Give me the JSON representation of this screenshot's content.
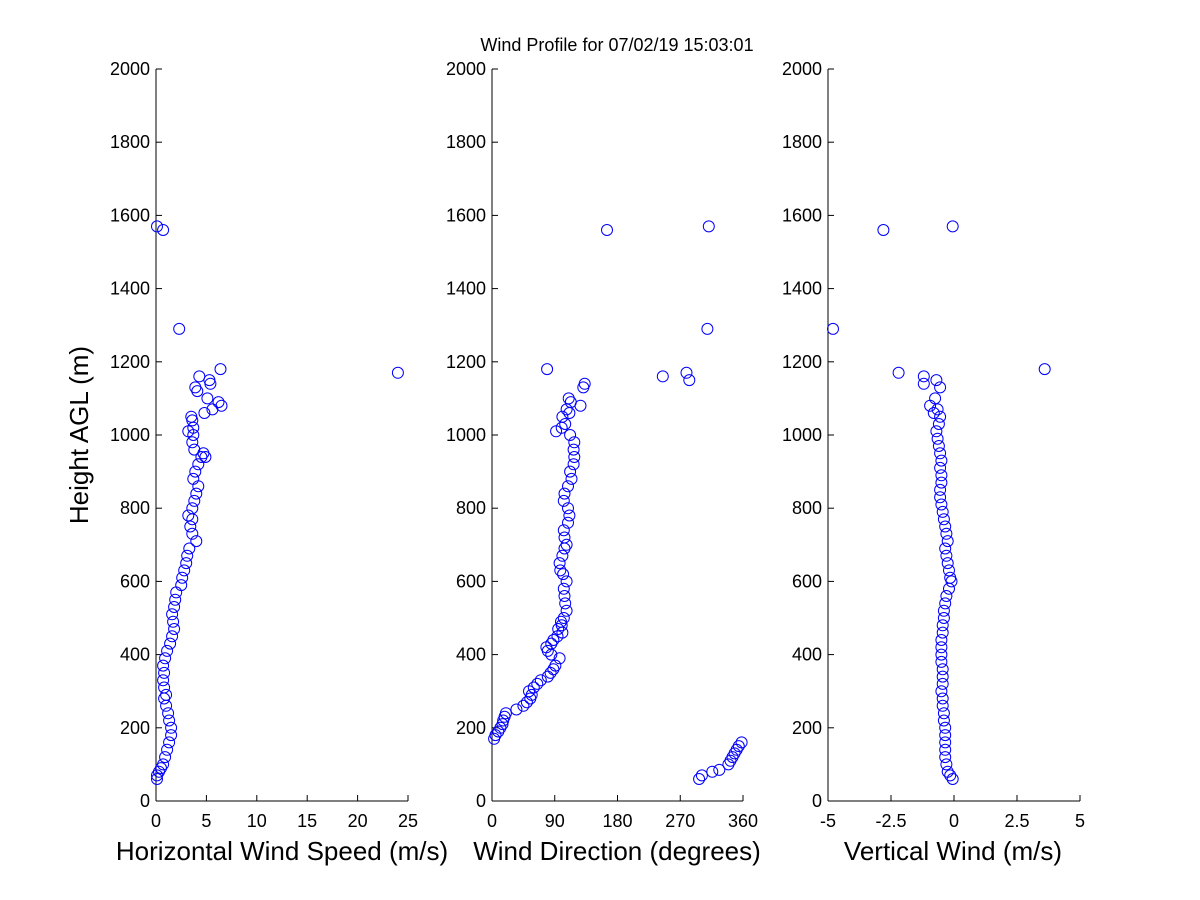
{
  "figure": {
    "title": "Wind Profile for  07/02/19 15:03:01",
    "marker_color": "#0000ff",
    "axis_color": "#000000"
  },
  "chart_data": [
    {
      "type": "scatter",
      "id": "speed",
      "xlabel": "Horizontal Wind Speed (m/s)",
      "ylabel": "Height AGL (m)",
      "xlim": [
        0,
        25
      ],
      "ylim": [
        0,
        2000
      ],
      "xticks": [
        0,
        5,
        10,
        15,
        20,
        25
      ],
      "xtick_labels": [
        "0",
        "5",
        "10",
        "15",
        "20",
        "25"
      ],
      "yticks": [
        0,
        200,
        400,
        600,
        800,
        1000,
        1200,
        1400,
        1600,
        1800,
        2000
      ],
      "ytick_labels": [
        "0",
        "200",
        "400",
        "600",
        "800",
        "1000",
        "1200",
        "1400",
        "1600",
        "1800",
        "2000"
      ],
      "points": [
        [
          0.1,
          60
        ],
        [
          0.1,
          70
        ],
        [
          0.3,
          80
        ],
        [
          0.5,
          90
        ],
        [
          0.7,
          100
        ],
        [
          0.9,
          120
        ],
        [
          1.1,
          140
        ],
        [
          1.3,
          160
        ],
        [
          1.5,
          180
        ],
        [
          1.5,
          200
        ],
        [
          1.3,
          220
        ],
        [
          1.2,
          240
        ],
        [
          1.0,
          260
        ],
        [
          0.8,
          280
        ],
        [
          1.0,
          290
        ],
        [
          0.8,
          310
        ],
        [
          0.7,
          330
        ],
        [
          0.8,
          350
        ],
        [
          0.7,
          370
        ],
        [
          0.9,
          390
        ],
        [
          1.1,
          410
        ],
        [
          1.4,
          430
        ],
        [
          1.6,
          450
        ],
        [
          1.8,
          470
        ],
        [
          1.7,
          490
        ],
        [
          1.6,
          510
        ],
        [
          1.8,
          530
        ],
        [
          1.9,
          550
        ],
        [
          2.0,
          570
        ],
        [
          2.5,
          590
        ],
        [
          2.6,
          610
        ],
        [
          2.8,
          630
        ],
        [
          3.0,
          650
        ],
        [
          3.1,
          670
        ],
        [
          3.3,
          690
        ],
        [
          4.0,
          710
        ],
        [
          3.6,
          730
        ],
        [
          3.4,
          750
        ],
        [
          3.6,
          770
        ],
        [
          3.2,
          780
        ],
        [
          3.6,
          800
        ],
        [
          3.8,
          820
        ],
        [
          4.0,
          840
        ],
        [
          4.2,
          860
        ],
        [
          3.7,
          880
        ],
        [
          3.9,
          900
        ],
        [
          4.2,
          920
        ],
        [
          4.5,
          940
        ],
        [
          4.7,
          950
        ],
        [
          4.9,
          940
        ],
        [
          3.8,
          960
        ],
        [
          3.6,
          980
        ],
        [
          3.7,
          1000
        ],
        [
          3.2,
          1010
        ],
        [
          3.7,
          1020
        ],
        [
          3.6,
          1040
        ],
        [
          3.5,
          1050
        ],
        [
          4.8,
          1060
        ],
        [
          5.6,
          1070
        ],
        [
          6.5,
          1080
        ],
        [
          6.2,
          1090
        ],
        [
          5.1,
          1100
        ],
        [
          4.1,
          1120
        ],
        [
          3.9,
          1130
        ],
        [
          5.4,
          1140
        ],
        [
          5.3,
          1150
        ],
        [
          4.3,
          1160
        ],
        [
          6.4,
          1180
        ],
        [
          24.0,
          1170
        ],
        [
          2.3,
          1290
        ],
        [
          0.7,
          1560
        ],
        [
          0.1,
          1570
        ]
      ]
    },
    {
      "type": "scatter",
      "id": "direction",
      "xlabel": "Wind Direction (degrees)",
      "ylabel": "",
      "xlim": [
        0,
        360
      ],
      "ylim": [
        0,
        2000
      ],
      "xticks": [
        0,
        90,
        180,
        270,
        360
      ],
      "xtick_labels": [
        "0",
        "90",
        "180",
        "270",
        "360"
      ],
      "yticks": [
        0,
        200,
        400,
        600,
        800,
        1000,
        1200,
        1400,
        1600,
        1800,
        2000
      ],
      "ytick_labels": [
        "0",
        "200",
        "400",
        "600",
        "800",
        "1000",
        "1200",
        "1400",
        "1600",
        "1800",
        "2000"
      ],
      "points": [
        [
          297,
          60
        ],
        [
          301,
          70
        ],
        [
          316,
          80
        ],
        [
          326,
          85
        ],
        [
          339,
          100
        ],
        [
          342,
          110
        ],
        [
          345,
          120
        ],
        [
          348,
          130
        ],
        [
          351,
          140
        ],
        [
          354,
          150
        ],
        [
          358,
          160
        ],
        [
          3,
          170
        ],
        [
          5,
          180
        ],
        [
          9,
          190
        ],
        [
          12,
          200
        ],
        [
          15,
          210
        ],
        [
          16,
          220
        ],
        [
          18,
          230
        ],
        [
          20,
          240
        ],
        [
          35,
          250
        ],
        [
          45,
          260
        ],
        [
          50,
          270
        ],
        [
          55,
          280
        ],
        [
          57,
          290
        ],
        [
          53,
          300
        ],
        [
          60,
          310
        ],
        [
          65,
          320
        ],
        [
          70,
          330
        ],
        [
          80,
          340
        ],
        [
          84,
          350
        ],
        [
          88,
          360
        ],
        [
          91,
          370
        ],
        [
          97,
          390
        ],
        [
          85,
          400
        ],
        [
          80,
          410
        ],
        [
          78,
          420
        ],
        [
          85,
          430
        ],
        [
          88,
          440
        ],
        [
          94,
          450
        ],
        [
          101,
          460
        ],
        [
          95,
          470
        ],
        [
          100,
          480
        ],
        [
          99,
          490
        ],
        [
          103,
          500
        ],
        [
          107,
          520
        ],
        [
          105,
          540
        ],
        [
          104,
          560
        ],
        [
          103,
          580
        ],
        [
          107,
          600
        ],
        [
          102,
          620
        ],
        [
          98,
          630
        ],
        [
          97,
          650
        ],
        [
          101,
          670
        ],
        [
          104,
          690
        ],
        [
          107,
          700
        ],
        [
          104,
          720
        ],
        [
          103,
          740
        ],
        [
          109,
          760
        ],
        [
          111,
          780
        ],
        [
          109,
          800
        ],
        [
          103,
          820
        ],
        [
          104,
          840
        ],
        [
          109,
          860
        ],
        [
          114,
          880
        ],
        [
          112,
          900
        ],
        [
          117,
          920
        ],
        [
          118,
          940
        ],
        [
          117,
          960
        ],
        [
          118,
          980
        ],
        [
          112,
          1000
        ],
        [
          92,
          1010
        ],
        [
          100,
          1020
        ],
        [
          105,
          1030
        ],
        [
          101,
          1050
        ],
        [
          111,
          1060
        ],
        [
          107,
          1070
        ],
        [
          127,
          1080
        ],
        [
          113,
          1090
        ],
        [
          110,
          1100
        ],
        [
          131,
          1130
        ],
        [
          133,
          1140
        ],
        [
          79,
          1180
        ],
        [
          245,
          1160
        ],
        [
          279,
          1170
        ],
        [
          283,
          1150
        ],
        [
          309,
          1290
        ],
        [
          165,
          1560
        ],
        [
          311,
          1570
        ]
      ]
    },
    {
      "type": "scatter",
      "id": "vertical",
      "xlabel": "Vertical Wind (m/s)",
      "ylabel": "",
      "xlim": [
        -5,
        5
      ],
      "ylim": [
        0,
        2000
      ],
      "xticks": [
        -5,
        -2.5,
        0,
        2.5,
        5
      ],
      "xtick_labels": [
        "-5",
        "-2.5",
        "0",
        "2.5",
        "5"
      ],
      "yticks": [
        0,
        200,
        400,
        600,
        800,
        1000,
        1200,
        1400,
        1600,
        1800,
        2000
      ],
      "ytick_labels": [
        "0",
        "200",
        "400",
        "600",
        "800",
        "1000",
        "1200",
        "1400",
        "1600",
        "1800",
        "2000"
      ],
      "points": [
        [
          -0.05,
          60
        ],
        [
          -0.15,
          70
        ],
        [
          -0.25,
          80
        ],
        [
          -0.3,
          100
        ],
        [
          -0.35,
          120
        ],
        [
          -0.35,
          140
        ],
        [
          -0.35,
          160
        ],
        [
          -0.35,
          180
        ],
        [
          -0.35,
          200
        ],
        [
          -0.4,
          220
        ],
        [
          -0.4,
          240
        ],
        [
          -0.45,
          260
        ],
        [
          -0.45,
          280
        ],
        [
          -0.5,
          300
        ],
        [
          -0.45,
          320
        ],
        [
          -0.45,
          340
        ],
        [
          -0.45,
          360
        ],
        [
          -0.5,
          380
        ],
        [
          -0.5,
          400
        ],
        [
          -0.5,
          420
        ],
        [
          -0.5,
          440
        ],
        [
          -0.45,
          460
        ],
        [
          -0.45,
          480
        ],
        [
          -0.4,
          500
        ],
        [
          -0.4,
          520
        ],
        [
          -0.35,
          540
        ],
        [
          -0.3,
          560
        ],
        [
          -0.2,
          580
        ],
        [
          -0.1,
          600
        ],
        [
          -0.15,
          610
        ],
        [
          -0.2,
          630
        ],
        [
          -0.25,
          650
        ],
        [
          -0.3,
          670
        ],
        [
          -0.35,
          690
        ],
        [
          -0.25,
          710
        ],
        [
          -0.3,
          730
        ],
        [
          -0.35,
          750
        ],
        [
          -0.4,
          770
        ],
        [
          -0.45,
          790
        ],
        [
          -0.5,
          810
        ],
        [
          -0.55,
          830
        ],
        [
          -0.55,
          850
        ],
        [
          -0.5,
          870
        ],
        [
          -0.5,
          890
        ],
        [
          -0.55,
          910
        ],
        [
          -0.5,
          930
        ],
        [
          -0.55,
          950
        ],
        [
          -0.6,
          970
        ],
        [
          -0.65,
          990
        ],
        [
          -0.7,
          1010
        ],
        [
          -0.6,
          1030
        ],
        [
          -0.55,
          1050
        ],
        [
          -0.8,
          1060
        ],
        [
          -0.65,
          1070
        ],
        [
          -0.95,
          1080
        ],
        [
          -0.75,
          1100
        ],
        [
          -0.55,
          1130
        ],
        [
          -1.2,
          1140
        ],
        [
          -0.7,
          1150
        ],
        [
          -1.2,
          1160
        ],
        [
          -2.2,
          1170
        ],
        [
          3.6,
          1180
        ],
        [
          -4.8,
          1290
        ],
        [
          -2.8,
          1560
        ],
        [
          -0.05,
          1570
        ]
      ]
    }
  ]
}
